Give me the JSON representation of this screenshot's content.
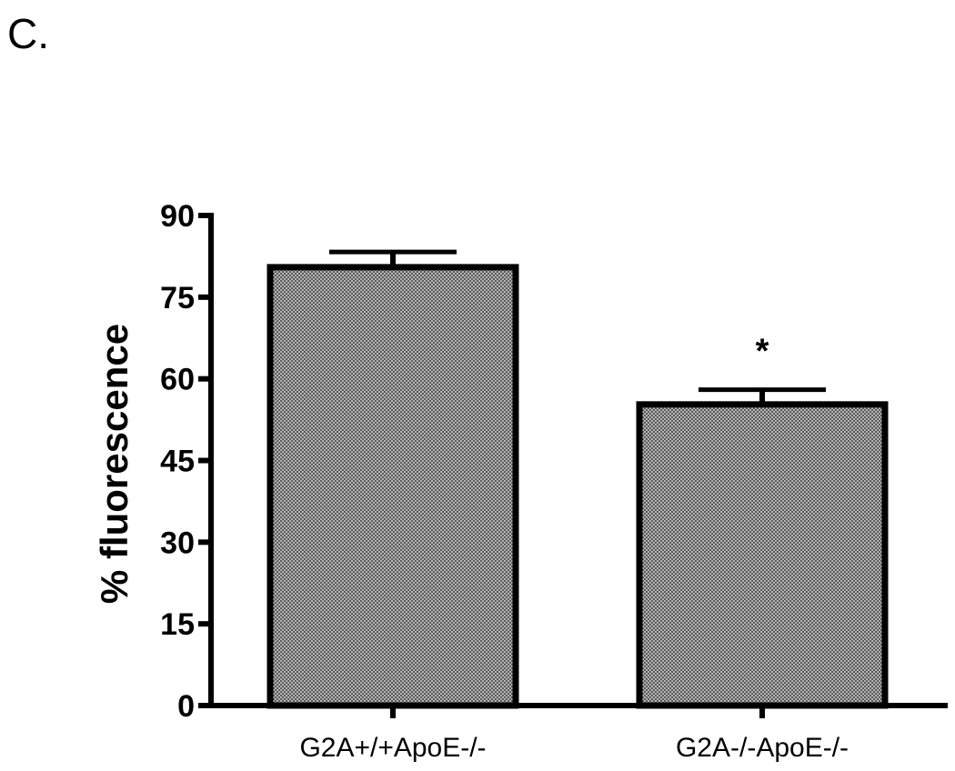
{
  "panel_label": "C.",
  "colors": {
    "bar_fill": "#8e8e8e",
    "bar_stroke": "#000000",
    "axis": "#000000"
  },
  "chart_data": {
    "type": "bar",
    "categories": [
      "G2A+/+ApoE-/-",
      "G2A-/-ApoE-/-"
    ],
    "values": [
      80.5,
      55.3
    ],
    "errors": [
      2.8,
      2.7
    ],
    "annotations": [
      "",
      "*"
    ],
    "title": "",
    "xlabel": "",
    "ylabel": "% fluorescence",
    "ylim": [
      0,
      90
    ],
    "yticks": [
      0,
      15,
      30,
      45,
      60,
      75,
      90
    ],
    "grid": false
  }
}
